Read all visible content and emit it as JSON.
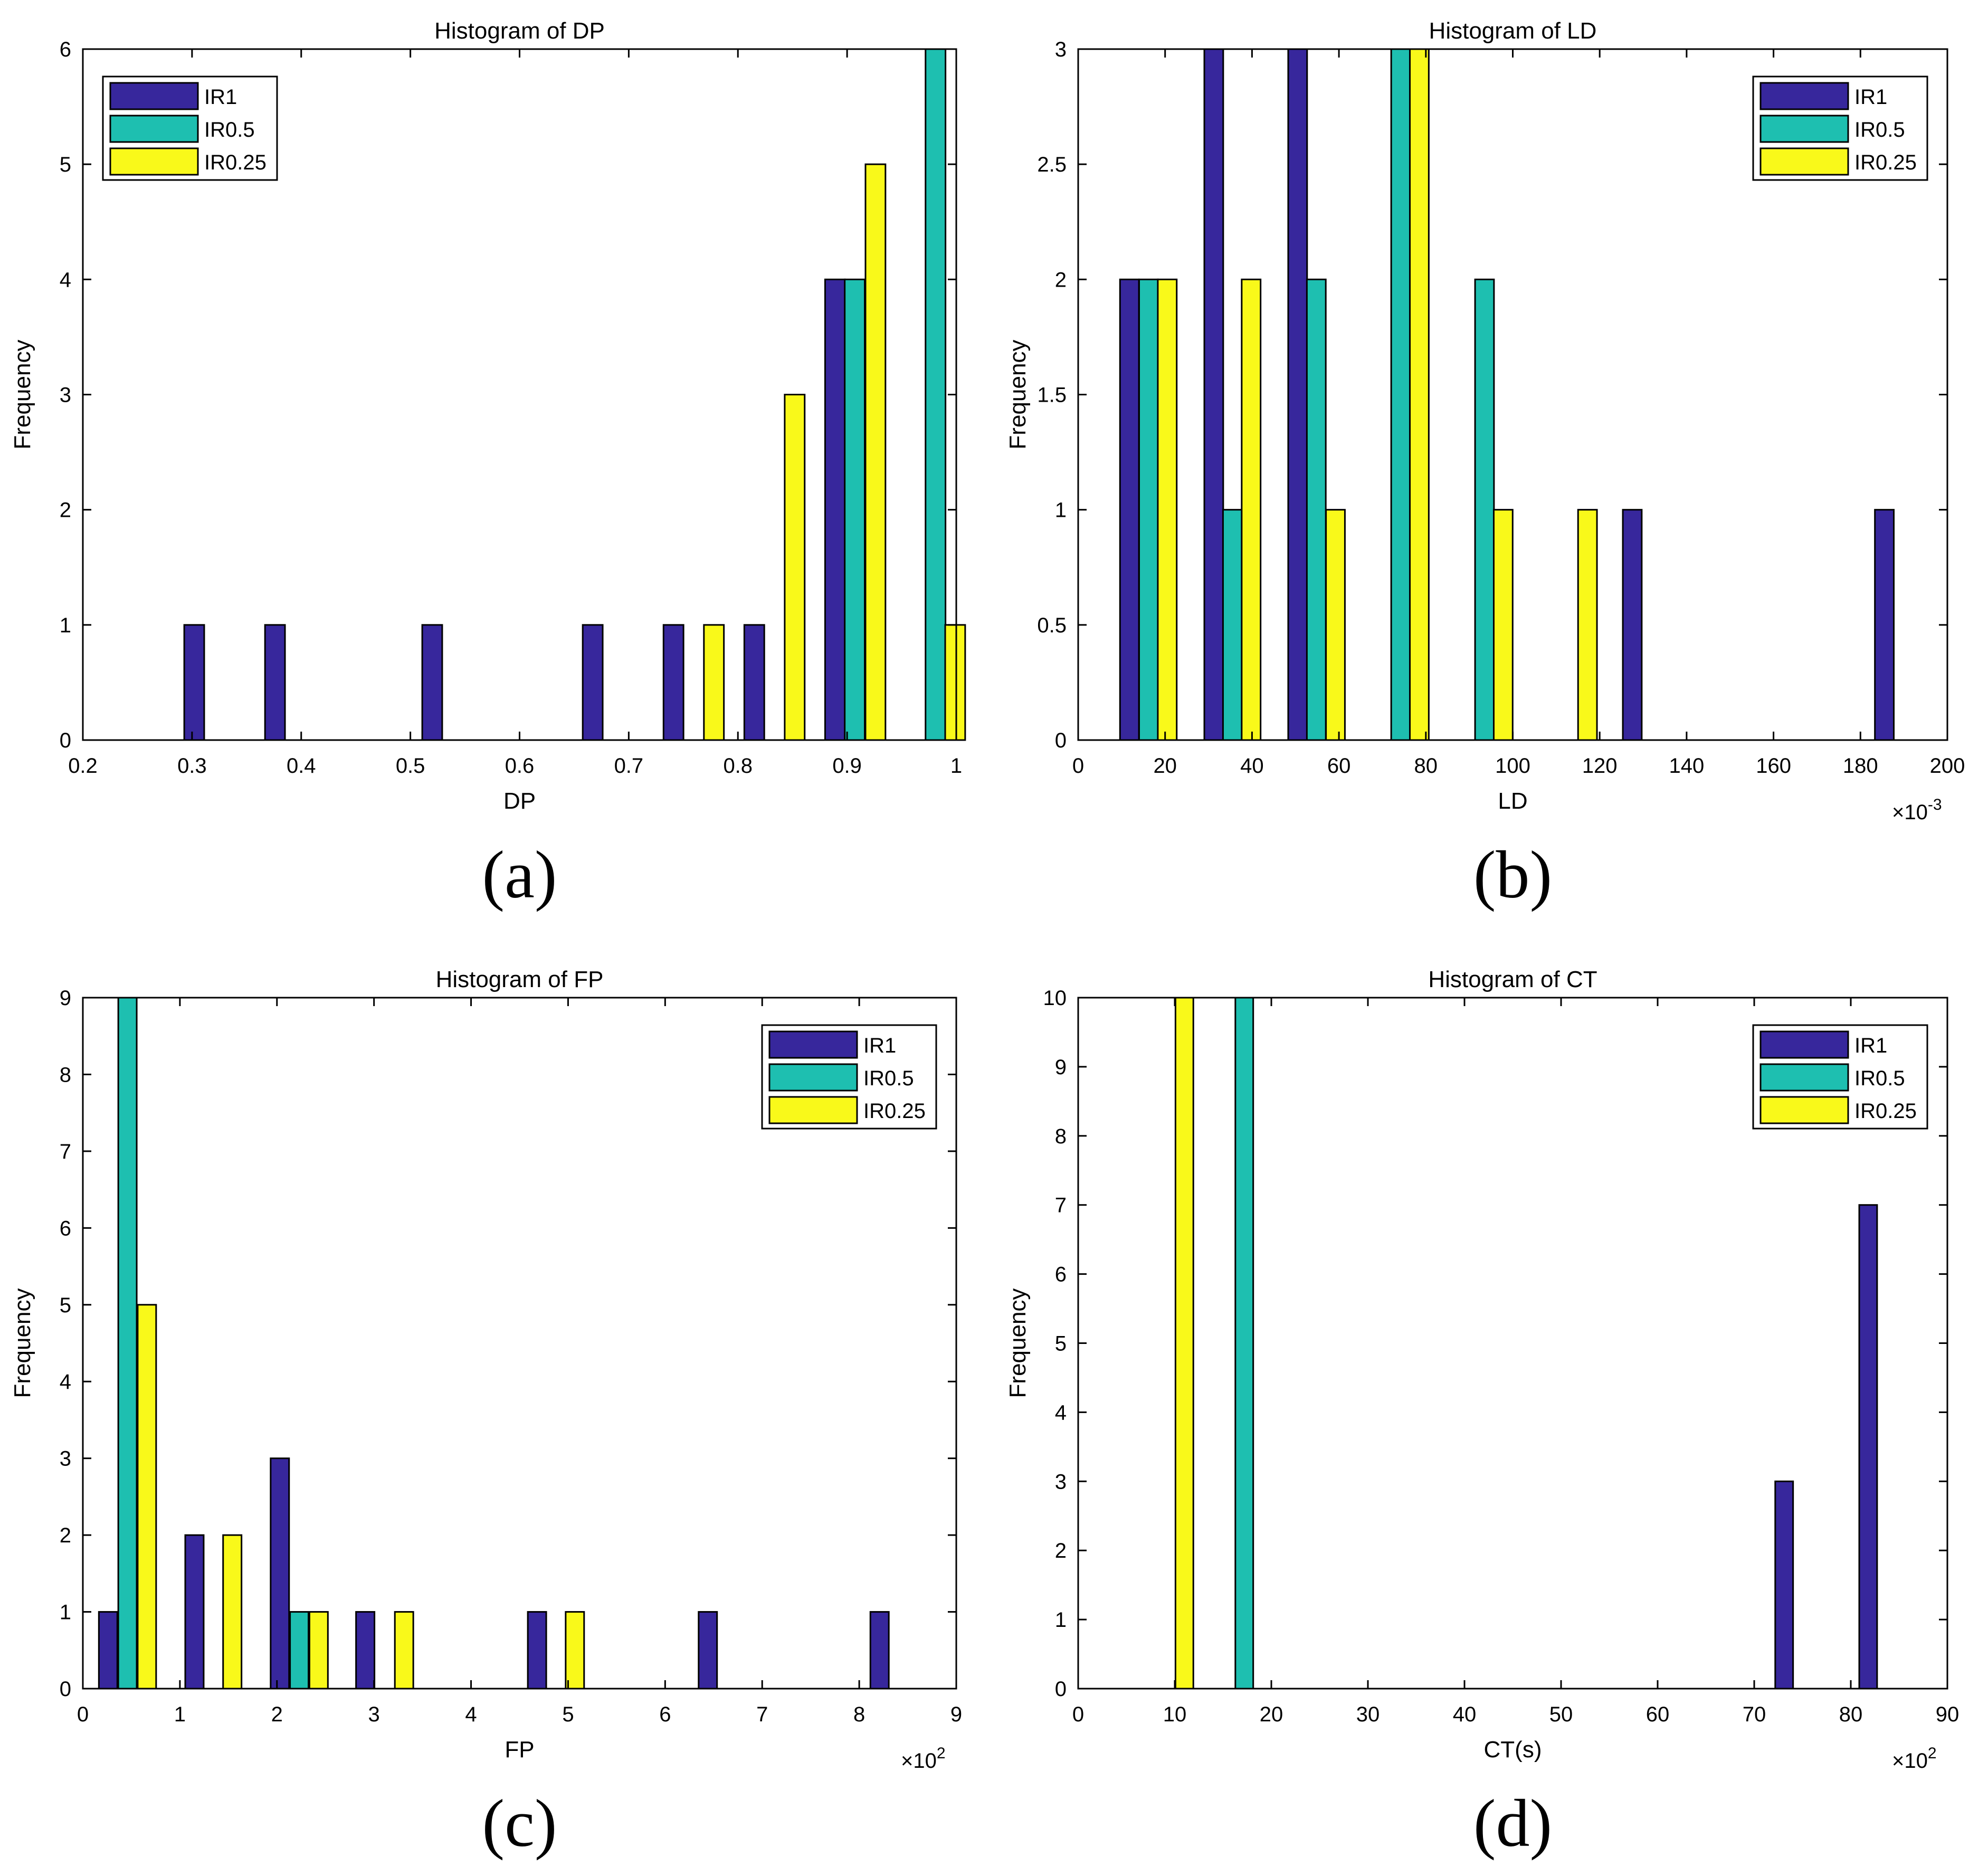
{
  "legend_colors": {
    "IR1": "#37279c",
    "IR0.5": "#1ebfb0",
    "IR0.25": "#f9f91a"
  },
  "chart_data": [
    {
      "id": "a",
      "type": "bar",
      "title": "Histogram of DP",
      "xlabel": "DP",
      "ylabel": "Frequency",
      "xlim": [
        0.2,
        1.0
      ],
      "ylim": [
        0,
        6
      ],
      "xticks": [
        0.2,
        0.3,
        0.4,
        0.5,
        0.6,
        0.7,
        0.8,
        0.9,
        1
      ],
      "xtick_labels": [
        "0.2",
        "0.3",
        "0.4",
        "0.5",
        "0.6",
        "0.7",
        "0.8",
        "0.9",
        "1"
      ],
      "yticks": [
        0,
        1,
        2,
        3,
        4,
        5,
        6
      ],
      "ytick_labels": [
        "0",
        "1",
        "2",
        "3",
        "4",
        "5",
        "6"
      ],
      "x_multiplier": "",
      "caption": "(a)",
      "legend_position": "top-left",
      "bar_width": 0.0183,
      "series": [
        {
          "name": "IR1",
          "x": [
            0.302,
            0.376,
            0.52,
            0.667,
            0.741,
            0.815,
            0.889
          ],
          "values": [
            1,
            1,
            1,
            1,
            1,
            1,
            4
          ]
        },
        {
          "name": "IR0.5",
          "x": [
            0.907,
            0.981
          ],
          "values": [
            4,
            6
          ]
        },
        {
          "name": "IR0.25",
          "x": [
            0.778,
            0.852,
            0.926,
            0.999
          ],
          "values": [
            1,
            3,
            5,
            1
          ]
        }
      ]
    },
    {
      "id": "b",
      "type": "bar",
      "title": "Histogram of LD",
      "xlabel": "LD",
      "ylabel": "Frequency",
      "xlim": [
        0,
        200
      ],
      "ylim": [
        0,
        3
      ],
      "xticks": [
        0,
        20,
        40,
        60,
        80,
        100,
        120,
        140,
        160,
        180,
        200
      ],
      "xtick_labels": [
        "0",
        "20",
        "40",
        "60",
        "80",
        "100",
        "120",
        "140",
        "160",
        "180",
        "200"
      ],
      "yticks": [
        0,
        0.5,
        1,
        1.5,
        2,
        2.5,
        3
      ],
      "ytick_labels": [
        "0",
        "0.5",
        "1",
        "1.5",
        "2",
        "2.5",
        "3"
      ],
      "x_multiplier": "×10",
      "x_multiplier_exp": "-3",
      "caption": "(b)",
      "legend_position": "top-right",
      "bar_width": 4.35,
      "series": [
        {
          "name": "IR1",
          "x": [
            11.8,
            31.2,
            50.5,
            127.5,
            185.5
          ],
          "values": [
            2,
            3,
            3,
            1,
            1
          ]
        },
        {
          "name": "IR0.5",
          "x": [
            16.2,
            35.5,
            54.8,
            74.2,
            93.5
          ],
          "values": [
            2,
            1,
            2,
            3,
            2
          ]
        },
        {
          "name": "IR0.25",
          "x": [
            20.5,
            39.8,
            59.2,
            78.5,
            97.8,
            117.2
          ],
          "values": [
            2,
            2,
            1,
            3,
            1,
            1
          ]
        }
      ]
    },
    {
      "id": "c",
      "type": "bar",
      "title": "Histogram of FP",
      "xlabel": "FP",
      "ylabel": "Frequency",
      "xlim": [
        0,
        9
      ],
      "ylim": [
        0,
        9
      ],
      "xticks": [
        0,
        1,
        2,
        3,
        4,
        5,
        6,
        7,
        8,
        9
      ],
      "xtick_labels": [
        "0",
        "1",
        "2",
        "3",
        "4",
        "5",
        "6",
        "7",
        "8",
        "9"
      ],
      "yticks": [
        0,
        1,
        2,
        3,
        4,
        5,
        6,
        7,
        8,
        9
      ],
      "ytick_labels": [
        "0",
        "1",
        "2",
        "3",
        "4",
        "5",
        "6",
        "7",
        "8",
        "9"
      ],
      "x_multiplier": "×10",
      "x_multiplier_exp": "2",
      "caption": "(c)",
      "legend_position": "top-right",
      "bar_width": 0.19,
      "series": [
        {
          "name": "IR1",
          "x": [
            0.26,
            1.15,
            2.03,
            2.91,
            4.68,
            6.44,
            8.21
          ],
          "values": [
            1,
            2,
            3,
            1,
            1,
            1,
            1
          ]
        },
        {
          "name": "IR0.5",
          "x": [
            0.46,
            2.23
          ],
          "values": [
            9,
            1
          ]
        },
        {
          "name": "IR0.25",
          "x": [
            0.66,
            1.54,
            2.43,
            3.31,
            5.07
          ],
          "values": [
            5,
            2,
            1,
            1,
            1
          ]
        }
      ]
    },
    {
      "id": "d",
      "type": "bar",
      "title": "Histogram of CT",
      "xlabel": "CT(s)",
      "ylabel": "Frequency",
      "xlim": [
        0,
        90
      ],
      "ylim": [
        0,
        10
      ],
      "xticks": [
        0,
        10,
        20,
        30,
        40,
        50,
        60,
        70,
        80,
        90
      ],
      "xtick_labels": [
        "0",
        "10",
        "20",
        "30",
        "40",
        "50",
        "60",
        "70",
        "80",
        "90"
      ],
      "yticks": [
        0,
        1,
        2,
        3,
        4,
        5,
        6,
        7,
        8,
        9,
        10
      ],
      "ytick_labels": [
        "0",
        "1",
        "2",
        "3",
        "4",
        "5",
        "6",
        "7",
        "8",
        "9",
        "10"
      ],
      "x_multiplier": "×10",
      "x_multiplier_exp": "2",
      "caption": "(d)",
      "legend_position": "top-right",
      "bar_width": 1.85,
      "series": [
        {
          "name": "IR1",
          "x": [
            73.1,
            81.8
          ],
          "values": [
            3,
            7
          ]
        },
        {
          "name": "IR0.5",
          "x": [
            17.2
          ],
          "values": [
            10
          ]
        },
        {
          "name": "IR0.25",
          "x": [
            11.0
          ],
          "values": [
            10
          ]
        }
      ]
    }
  ]
}
